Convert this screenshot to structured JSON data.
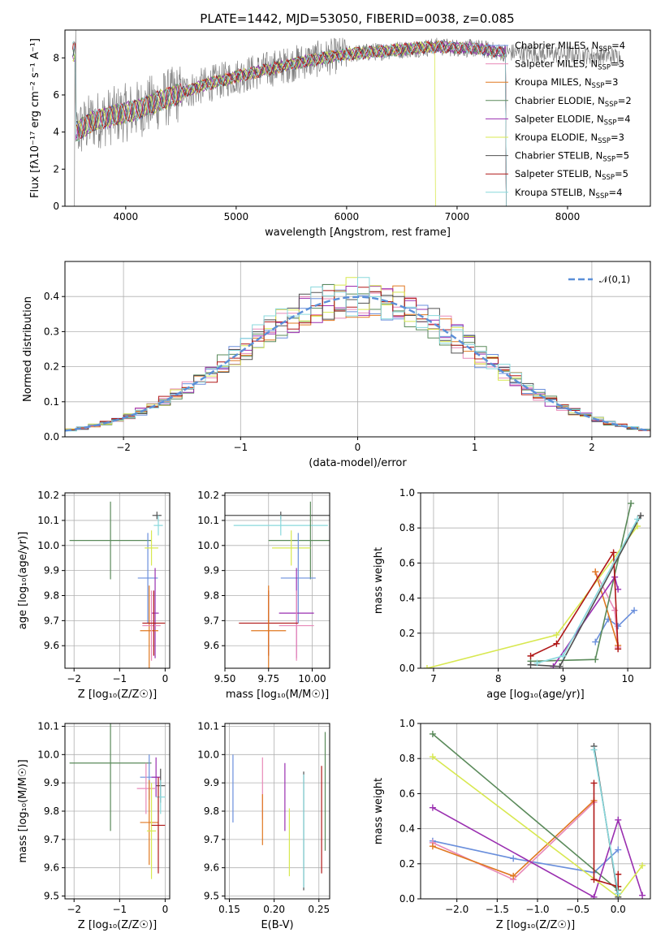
{
  "title": "PLATE=1442, MJD=53050, FIBERID=0038, z=0.085",
  "chart_data": [
    {
      "type": "line",
      "panel": "spectrum",
      "xlabel": "wavelength [Angstrom, rest frame]",
      "ylabel": "Flux [fλ10⁻¹⁷ erg cm⁻² s⁻¹ A⁻¹]",
      "xlim": [
        3450,
        8750
      ],
      "ylim": [
        0,
        9.5
      ],
      "xticks": [
        "4000",
        "5000",
        "6000",
        "7000",
        "8000"
      ],
      "yticks": [
        "0",
        "2",
        "4",
        "6",
        "8"
      ],
      "grid": false,
      "legend_position": "right",
      "series": [
        {
          "name": "Chabrier MILES, N_SSP=4",
          "color": "#6a8fdc"
        },
        {
          "name": "Salpeter MILES, N_SSP=3",
          "color": "#e889b8"
        },
        {
          "name": "Kroupa MILES, N_SSP=3",
          "color": "#e07820"
        },
        {
          "name": "Chabrier ELODIE, N_SSP=2",
          "color": "#5a8a5a"
        },
        {
          "name": "Salpeter ELODIE, N_SSP=4",
          "color": "#9a2fb0"
        },
        {
          "name": "Kroupa ELODIE, N_SSP=3",
          "color": "#d8e850"
        },
        {
          "name": "Chabrier STELIB, N_SSP=5",
          "color": "#505050"
        },
        {
          "name": "Salpeter STELIB, N_SSP=5",
          "color": "#b01818"
        },
        {
          "name": "Kroupa STELIB, N_SSP=4",
          "color": "#88d8dc"
        }
      ],
      "data_color": "#808080",
      "continuum_points": [
        [
          3550,
          4.0
        ],
        [
          3700,
          4.6
        ],
        [
          3900,
          4.9
        ],
        [
          4100,
          5.2
        ],
        [
          4400,
          5.9
        ],
        [
          4700,
          6.5
        ],
        [
          5000,
          7.0
        ],
        [
          5300,
          7.4
        ],
        [
          5600,
          7.8
        ],
        [
          6000,
          8.2
        ],
        [
          6400,
          8.4
        ],
        [
          6800,
          8.6
        ],
        [
          7200,
          8.5
        ],
        [
          7400,
          8.3
        ]
      ]
    },
    {
      "type": "histogram",
      "panel": "residuals",
      "xlabel": "(data-model)/error",
      "ylabel": "Normed distribution",
      "xlim": [
        -2.5,
        2.5
      ],
      "ylim": [
        0,
        0.5
      ],
      "xticks": [
        "−2",
        "−1",
        "0",
        "1",
        "2"
      ],
      "yticks": [
        "0.0",
        "0.1",
        "0.2",
        "0.3",
        "0.4"
      ],
      "grid": true,
      "bin_width": 0.1,
      "legend_entries": [
        "𝒩(0,1)"
      ],
      "reference_curve_color": "#5b8fd8",
      "histogram_colors": [
        "#6a8fdc",
        "#e889b8",
        "#e07820",
        "#5a8a5a",
        "#9a2fb0",
        "#d8e850",
        "#505050",
        "#b01818",
        "#88d8dc"
      ]
    },
    {
      "type": "errorbar",
      "panel": "age_vs_Z",
      "xlabel": "Z [log₁₀(Z/Z☉)]",
      "ylabel": "age  [log₁₀(age/yr)]",
      "xlim": [
        -2.2,
        0.1
      ],
      "ylim": [
        9.51,
        10.21
      ],
      "xticks": [
        "−2",
        "−1",
        "0"
      ],
      "yticks": [
        "9.6",
        "9.7",
        "9.8",
        "9.9",
        "10.0",
        "10.1",
        "10.2"
      ],
      "grid": true,
      "points": [
        {
          "x": -1.2,
          "xerr": 0.9,
          "y": 10.02,
          "yerr": 0.155,
          "color": "#5a8a5a"
        },
        {
          "x": -0.38,
          "xerr": 0.22,
          "y": 9.87,
          "yerr": 0.18,
          "color": "#6a8fdc"
        },
        {
          "x": -0.3,
          "xerr": 0.15,
          "y": 9.99,
          "yerr": 0.07,
          "color": "#d8e850"
        },
        {
          "x": -0.22,
          "xerr": 0.08,
          "y": 9.73,
          "yerr": 0.18,
          "color": "#9a2fb0"
        },
        {
          "x": -0.18,
          "xerr": 0.1,
          "y": 10.12,
          "yerr": 0.015,
          "color": "#505050"
        },
        {
          "x": -0.15,
          "xerr": 0.1,
          "y": 10.08,
          "yerr": 0.04,
          "color": "#88d8dc"
        },
        {
          "x": -0.35,
          "xerr": 0.2,
          "y": 9.66,
          "yerr": 0.18,
          "color": "#e07820"
        },
        {
          "x": -0.3,
          "xerr": 0.2,
          "y": 9.68,
          "yerr": 0.14,
          "color": "#e889b8"
        },
        {
          "x": -0.25,
          "xerr": 0.25,
          "y": 9.69,
          "yerr": 0.13,
          "color": "#b01818"
        }
      ]
    },
    {
      "type": "errorbar",
      "panel": "age_vs_mass",
      "xlabel": "mass [log₁₀(M/M☉)]",
      "ylabel": "",
      "xlim": [
        9.5,
        10.1
      ],
      "ylim": [
        9.51,
        10.21
      ],
      "xticks": [
        "9.50",
        "9.75",
        "10.00"
      ],
      "yticks": [
        "9.6",
        "9.7",
        "9.8",
        "9.9",
        "10.0",
        "10.1",
        "10.2"
      ],
      "grid": true,
      "points": [
        {
          "x": 9.82,
          "xerr": 0.32,
          "y": 10.12,
          "yerr": 0.015,
          "color": "#505050"
        },
        {
          "x": 9.82,
          "xerr": 0.27,
          "y": 10.08,
          "yerr": 0.04,
          "color": "#88d8dc"
        },
        {
          "x": 9.99,
          "xerr": 0.24,
          "y": 10.02,
          "yerr": 0.155,
          "color": "#5a8a5a"
        },
        {
          "x": 9.88,
          "xerr": 0.11,
          "y": 9.99,
          "yerr": 0.07,
          "color": "#d8e850"
        },
        {
          "x": 9.92,
          "xerr": 0.1,
          "y": 9.87,
          "yerr": 0.18,
          "color": "#6a8fdc"
        },
        {
          "x": 9.91,
          "xerr": 0.1,
          "y": 9.73,
          "yerr": 0.18,
          "color": "#9a2fb0"
        },
        {
          "x": 9.91,
          "xerr": 0.1,
          "y": 9.68,
          "yerr": 0.14,
          "color": "#e889b8"
        },
        {
          "x": 9.75,
          "xerr": 0.17,
          "y": 9.69,
          "yerr": 0.13,
          "color": "#b01818"
        },
        {
          "x": 9.75,
          "xerr": 0.1,
          "y": 9.66,
          "yerr": 0.18,
          "color": "#e07820"
        }
      ]
    },
    {
      "type": "line",
      "panel": "weight_vs_age",
      "xlabel": "age  [log₁₀(age/yr)]",
      "ylabel": "mass weight",
      "xlim": [
        6.8,
        10.35
      ],
      "ylim": [
        0,
        1.0
      ],
      "xticks": [
        "7",
        "8",
        "9",
        "10"
      ],
      "yticks": [
        "0.0",
        "0.2",
        "0.4",
        "0.6",
        "0.8",
        "1.0"
      ],
      "grid": true,
      "series": [
        {
          "color": "#6a8fdc",
          "points": [
            [
              9.5,
              0.15
            ],
            [
              9.7,
              0.28
            ],
            [
              9.85,
              0.24
            ],
            [
              10.1,
              0.33
            ]
          ]
        },
        {
          "color": "#e889b8",
          "points": [
            [
              9.5,
              0.55
            ],
            [
              9.8,
              0.33
            ],
            [
              9.85,
              0.12
            ]
          ]
        },
        {
          "color": "#e07820",
          "points": [
            [
              9.5,
              0.55
            ],
            [
              9.85,
              0.13
            ]
          ]
        },
        {
          "color": "#5a8a5a",
          "points": [
            [
              8.5,
              0.04
            ],
            [
              9.5,
              0.05
            ],
            [
              10.05,
              0.94
            ]
          ]
        },
        {
          "color": "#9a2fb0",
          "points": [
            [
              8.85,
              0.01
            ],
            [
              9.8,
              0.52
            ],
            [
              9.85,
              0.45
            ]
          ]
        },
        {
          "color": "#d8e850",
          "points": [
            [
              6.9,
              0.0
            ],
            [
              8.9,
              0.19
            ],
            [
              10.15,
              0.81
            ]
          ]
        },
        {
          "color": "#505050",
          "points": [
            [
              8.5,
              0.02
            ],
            [
              8.95,
              0.01
            ],
            [
              10.2,
              0.87
            ]
          ]
        },
        {
          "color": "#b01818",
          "points": [
            [
              8.5,
              0.07
            ],
            [
              8.9,
              0.14
            ],
            [
              9.78,
              0.66
            ],
            [
              9.85,
              0.11
            ]
          ]
        },
        {
          "color": "#88d8dc",
          "points": [
            [
              8.6,
              0.03
            ],
            [
              9.0,
              0.07
            ],
            [
              10.15,
              0.85
            ]
          ]
        }
      ]
    },
    {
      "type": "errorbar",
      "panel": "mass_vs_Z",
      "xlabel": "Z [log₁₀(Z/Z☉)]",
      "ylabel": "mass [log₁₀(M/M☉)]",
      "xlim": [
        -2.2,
        0.1
      ],
      "ylim": [
        9.49,
        10.11
      ],
      "xticks": [
        "−2",
        "−1",
        "0"
      ],
      "yticks": [
        "9.5",
        "9.6",
        "9.7",
        "9.8",
        "9.9",
        "10.0",
        "10.1"
      ],
      "grid": true,
      "points": [
        {
          "x": -1.2,
          "xerr": 0.9,
          "y": 9.97,
          "yerr": 0.24,
          "color": "#5a8a5a"
        },
        {
          "x": -0.35,
          "xerr": 0.2,
          "y": 9.92,
          "yerr": 0.08,
          "color": "#6a8fdc"
        },
        {
          "x": -0.2,
          "xerr": 0.1,
          "y": 9.92,
          "yerr": 0.07,
          "color": "#9a2fb0"
        },
        {
          "x": -0.42,
          "xerr": 0.2,
          "y": 9.88,
          "yerr": 0.09,
          "color": "#e889b8"
        },
        {
          "x": -0.1,
          "xerr": 0.1,
          "y": 9.89,
          "yerr": 0.06,
          "color": "#505050"
        },
        {
          "x": -0.1,
          "xerr": 0.1,
          "y": 9.85,
          "yerr": 0.06,
          "color": "#88d8dc"
        },
        {
          "x": -0.35,
          "xerr": 0.2,
          "y": 9.76,
          "yerr": 0.15,
          "color": "#e07820"
        },
        {
          "x": -0.3,
          "xerr": 0.1,
          "y": 9.73,
          "yerr": 0.17,
          "color": "#d8e850"
        },
        {
          "x": -0.15,
          "xerr": 0.15,
          "y": 9.75,
          "yerr": 0.17,
          "color": "#b01818"
        }
      ]
    },
    {
      "type": "errorbar",
      "panel": "mass_vs_EBV",
      "xlabel": "E(B-V)",
      "ylabel": "",
      "xlim": [
        0.145,
        0.262
      ],
      "ylim": [
        9.49,
        10.11
      ],
      "xticks": [
        "0.15",
        "0.20",
        "0.25"
      ],
      "yticks": [
        "9.5",
        "9.6",
        "9.7",
        "9.8",
        "9.9",
        "10.0",
        "10.1"
      ],
      "grid": true,
      "points": [
        {
          "x": 0.154,
          "y": 9.88,
          "yerr": 0.12,
          "color": "#6a8fdc"
        },
        {
          "x": 0.187,
          "y": 9.88,
          "yerr": 0.11,
          "color": "#e889b8"
        },
        {
          "x": 0.187,
          "y": 9.77,
          "yerr": 0.09,
          "color": "#e07820"
        },
        {
          "x": 0.212,
          "y": 9.85,
          "yerr": 0.12,
          "color": "#9a2fb0"
        },
        {
          "x": 0.217,
          "y": 9.69,
          "yerr": 0.12,
          "color": "#d8e850"
        },
        {
          "x": 0.233,
          "y": 9.73,
          "yerr": 0.21,
          "color": "#505050"
        },
        {
          "x": 0.233,
          "y": 9.73,
          "yerr": 0.2,
          "color": "#88d8dc"
        },
        {
          "x": 0.253,
          "y": 9.77,
          "yerr": 0.19,
          "color": "#b01818"
        },
        {
          "x": 0.257,
          "y": 9.87,
          "yerr": 0.21,
          "color": "#5a8a5a"
        }
      ]
    },
    {
      "type": "line",
      "panel": "weight_vs_Z",
      "xlabel": "Z [log₁₀(Z/Z☉)]",
      "ylabel": "mass weight",
      "xlim": [
        -2.45,
        0.4
      ],
      "ylim": [
        0,
        1.0
      ],
      "xticks": [
        "−2.0",
        "−1.5",
        "−1.0",
        "−0.5",
        "0.0"
      ],
      "yticks": [
        "0.0",
        "0.2",
        "0.4",
        "0.6",
        "0.8",
        "1.0"
      ],
      "grid": true,
      "series": [
        {
          "color": "#6a8fdc",
          "points": [
            [
              -2.3,
              0.33
            ],
            [
              -1.3,
              0.23
            ],
            [
              -0.3,
              0.15
            ],
            [
              0.0,
              0.28
            ]
          ]
        },
        {
          "color": "#e889b8",
          "points": [
            [
              -2.3,
              0.32
            ],
            [
              -1.3,
              0.11
            ],
            [
              -0.3,
              0.55
            ]
          ]
        },
        {
          "color": "#e07820",
          "points": [
            [
              -2.3,
              0.3
            ],
            [
              -1.3,
              0.13
            ],
            [
              -0.3,
              0.56
            ]
          ]
        },
        {
          "color": "#5a8a5a",
          "points": [
            [
              -2.3,
              0.94
            ],
            [
              0.0,
              0.05
            ]
          ]
        },
        {
          "color": "#9a2fb0",
          "points": [
            [
              -2.3,
              0.52
            ],
            [
              -0.3,
              0.01
            ],
            [
              0.0,
              0.45
            ],
            [
              0.3,
              0.02
            ]
          ]
        },
        {
          "color": "#d8e850",
          "points": [
            [
              -2.3,
              0.81
            ],
            [
              0.0,
              0.01
            ],
            [
              0.3,
              0.19
            ]
          ]
        },
        {
          "color": "#505050",
          "points": [
            [
              -0.3,
              0.87
            ],
            [
              0.0,
              0.01
            ]
          ]
        },
        {
          "color": "#b01818",
          "points": [
            [
              -0.3,
              0.66
            ],
            [
              -0.3,
              0.11
            ],
            [
              0.0,
              0.07
            ],
            [
              0.0,
              0.14
            ]
          ]
        },
        {
          "color": "#88d8dc",
          "points": [
            [
              -0.3,
              0.85
            ],
            [
              0.0,
              0.03
            ]
          ]
        }
      ]
    }
  ]
}
